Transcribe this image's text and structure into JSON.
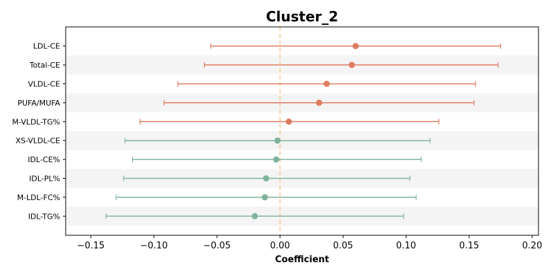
{
  "chart_data": {
    "type": "forest",
    "title": "Cluster_2",
    "xlabel": "Coefficient",
    "ylabel": "",
    "xlim": [
      -0.17,
      0.205
    ],
    "xticks": [
      -0.15,
      -0.1,
      -0.05,
      0.0,
      0.05,
      0.1,
      0.15,
      0.2
    ],
    "xtick_labels": [
      "−0.15",
      "−0.10",
      "−0.05",
      "0.00",
      "0.05",
      "0.10",
      "0.15",
      "0.20"
    ],
    "reference_line": 0.0,
    "grid": false,
    "alternating_row_shading": true,
    "colors": {
      "positive": "#e07b5f",
      "negative": "#7fb49a",
      "reference_line": "#f5c98a",
      "row_shade": "#f4f4f4"
    },
    "rows": [
      {
        "label": "LDL-CE",
        "coef": 0.06,
        "lower": -0.055,
        "upper": 0.175,
        "group": "positive"
      },
      {
        "label": "Total-CE",
        "coef": 0.057,
        "lower": -0.06,
        "upper": 0.173,
        "group": "positive"
      },
      {
        "label": "VLDL-CE",
        "coef": 0.037,
        "lower": -0.081,
        "upper": 0.155,
        "group": "positive"
      },
      {
        "label": "PUFA/MUFA",
        "coef": 0.031,
        "lower": -0.092,
        "upper": 0.154,
        "group": "positive"
      },
      {
        "label": "M-VLDL-TG%",
        "coef": 0.007,
        "lower": -0.111,
        "upper": 0.126,
        "group": "positive"
      },
      {
        "label": "XS-VLDL-CE",
        "coef": -0.002,
        "lower": -0.123,
        "upper": 0.119,
        "group": "negative"
      },
      {
        "label": "IDL-CE%",
        "coef": -0.003,
        "lower": -0.117,
        "upper": 0.112,
        "group": "negative"
      },
      {
        "label": "IDL-PL%",
        "coef": -0.011,
        "lower": -0.124,
        "upper": 0.103,
        "group": "negative"
      },
      {
        "label": "M-LDL-FC%",
        "coef": -0.012,
        "lower": -0.13,
        "upper": 0.108,
        "group": "negative"
      },
      {
        "label": "IDL-TG%",
        "coef": -0.02,
        "lower": -0.138,
        "upper": 0.098,
        "group": "negative"
      }
    ]
  }
}
